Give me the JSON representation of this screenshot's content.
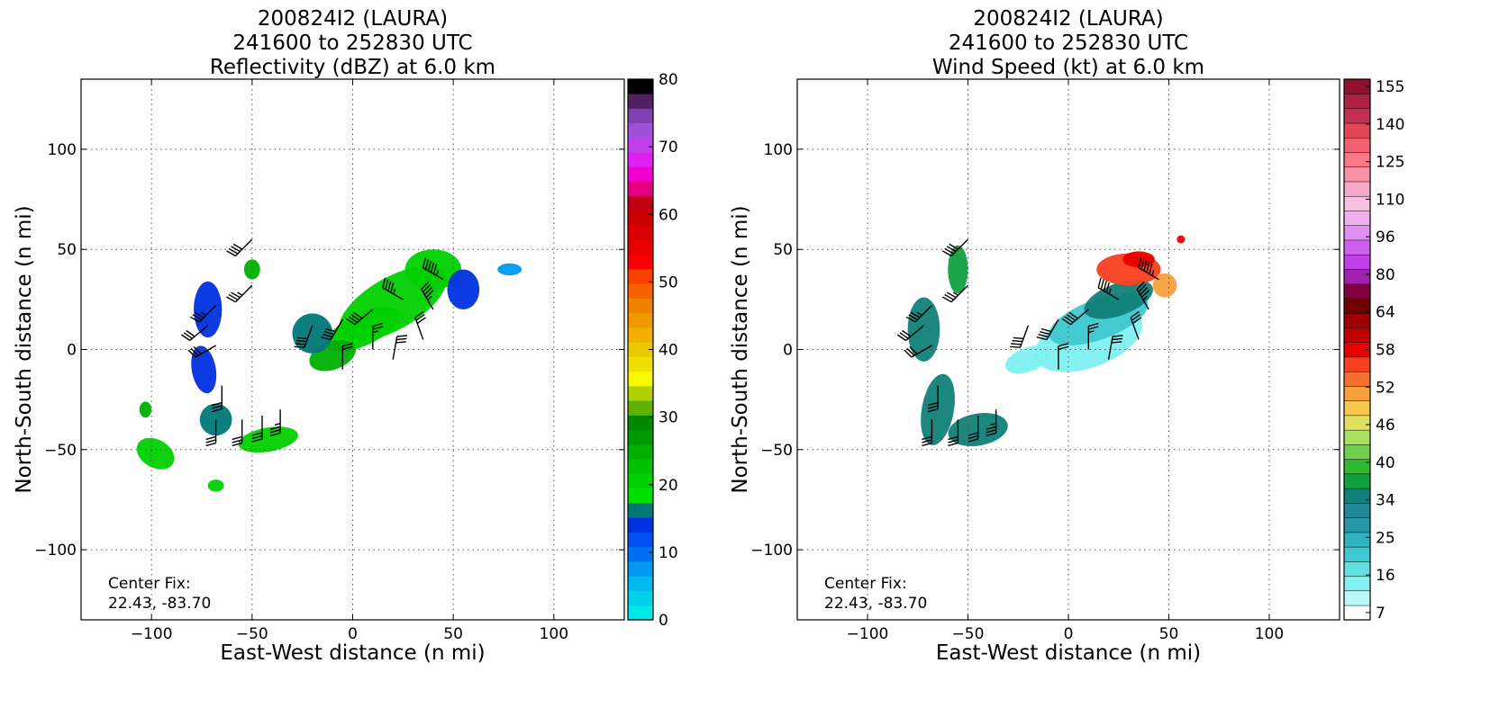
{
  "chart_data": [
    {
      "type": "heatmap",
      "title_lines": [
        "200824I2 (LAURA)",
        "241600 to 252830 UTC",
        "Reflectivity (dBZ) at 6.0 km"
      ],
      "xlabel": "East-West distance (n mi)",
      "ylabel": "North-South distance (n mi)",
      "xlim": [
        -135,
        135
      ],
      "ylim": [
        -135,
        135
      ],
      "xticks": [
        -100,
        -50,
        0,
        50,
        100
      ],
      "yticks": [
        -100,
        -50,
        0,
        50,
        100
      ],
      "grid": true,
      "annotation_lines": [
        "Center Fix:",
        "22.43, -83.70"
      ],
      "colorbar": {
        "min": 0,
        "max": 80,
        "ticks": [
          "0",
          "10",
          "20",
          "30",
          "40",
          "50",
          "60",
          "70",
          "80"
        ],
        "colors": [
          "#00e8e8",
          "#00d0e8",
          "#00b8f0",
          "#0098f0",
          "#0070f0",
          "#0050f0",
          "#0030e0",
          "#007878",
          "#00e000",
          "#00d000",
          "#00c000",
          "#00b000",
          "#009800",
          "#008800",
          "#60b000",
          "#b0d000",
          "#f8f800",
          "#f0e000",
          "#e8c800",
          "#f0b000",
          "#f09800",
          "#f08000",
          "#f86000",
          "#f84000",
          "#f80000",
          "#e80000",
          "#d80000",
          "#c80000",
          "#c00010",
          "#e00080",
          "#f000d0",
          "#e020f0",
          "#c040e8",
          "#a050d8",
          "#8040b0",
          "#502060",
          "#000000"
        ]
      },
      "field_color_scale": [
        "#00d0e8",
        "#0098f0",
        "#0050f0",
        "#0030e0",
        "#007878",
        "#00b000",
        "#00d000",
        "#00f000",
        "#60b000",
        "#b0d000",
        "#f8f800"
      ],
      "regions": [
        {
          "x": 20,
          "y": 23,
          "rx": 30,
          "ry": 13,
          "rot": 30,
          "level": 6
        },
        {
          "x": 40,
          "y": 40,
          "rx": 14,
          "ry": 10,
          "rot": 0,
          "level": 6
        },
        {
          "x": 5,
          "y": 10,
          "rx": 20,
          "ry": 8,
          "rot": 25,
          "level": 6
        },
        {
          "x": -10,
          "y": -3,
          "rx": 12,
          "ry": 7,
          "rot": 20,
          "level": 5
        },
        {
          "x": -20,
          "y": 8,
          "rx": 10,
          "ry": 10,
          "rot": 0,
          "level": 4
        },
        {
          "x": 55,
          "y": 30,
          "rx": 8,
          "ry": 10,
          "rot": 0,
          "level": 3
        },
        {
          "x": -72,
          "y": 20,
          "rx": 7,
          "ry": 14,
          "rot": 0,
          "level": 3
        },
        {
          "x": -74,
          "y": -10,
          "rx": 6,
          "ry": 12,
          "rot": 10,
          "level": 3
        },
        {
          "x": -68,
          "y": -35,
          "rx": 8,
          "ry": 8,
          "rot": 0,
          "level": 4
        },
        {
          "x": -42,
          "y": -45,
          "rx": 15,
          "ry": 6,
          "rot": 10,
          "level": 6
        },
        {
          "x": -98,
          "y": -52,
          "rx": 10,
          "ry": 7,
          "rot": -30,
          "level": 6
        },
        {
          "x": -103,
          "y": -30,
          "rx": 3,
          "ry": 4,
          "rot": 0,
          "level": 5
        },
        {
          "x": -68,
          "y": -68,
          "rx": 4,
          "ry": 3,
          "rot": 0,
          "level": 6
        },
        {
          "x": -50,
          "y": 40,
          "rx": 4,
          "ry": 5,
          "rot": 0,
          "level": 5
        },
        {
          "x": 78,
          "y": 40,
          "rx": 6,
          "ry": 3,
          "rot": 0,
          "level": 1
        }
      ],
      "barbs": [
        {
          "x": -50,
          "y": 55,
          "dir": 225,
          "spd": 40
        },
        {
          "x": -50,
          "y": 32,
          "dir": 225,
          "spd": 35
        },
        {
          "x": -68,
          "y": 22,
          "dir": 225,
          "spd": 35
        },
        {
          "x": -72,
          "y": 12,
          "dir": 230,
          "spd": 30
        },
        {
          "x": -68,
          "y": 2,
          "dir": 240,
          "spd": 30
        },
        {
          "x": -65,
          "y": -18,
          "dir": 180,
          "spd": 30
        },
        {
          "x": -68,
          "y": -35,
          "dir": 180,
          "spd": 30
        },
        {
          "x": -55,
          "y": -35,
          "dir": 180,
          "spd": 30
        },
        {
          "x": -45,
          "y": -33,
          "dir": 180,
          "spd": 30
        },
        {
          "x": -36,
          "y": -30,
          "dir": 180,
          "spd": 35
        },
        {
          "x": -20,
          "y": 12,
          "dir": 200,
          "spd": 40
        },
        {
          "x": -5,
          "y": 15,
          "dir": 210,
          "spd": 40
        },
        {
          "x": 10,
          "y": 20,
          "dir": 230,
          "spd": 40
        },
        {
          "x": 25,
          "y": 25,
          "dir": 300,
          "spd": 45
        },
        {
          "x": 40,
          "y": 20,
          "dir": 330,
          "spd": 45
        },
        {
          "x": 45,
          "y": 35,
          "dir": 300,
          "spd": 55
        },
        {
          "x": 10,
          "y": 0,
          "dir": 0,
          "spd": 25
        },
        {
          "x": 20,
          "y": -5,
          "dir": 10,
          "spd": 30
        },
        {
          "x": 35,
          "y": 5,
          "dir": 340,
          "spd": 30
        },
        {
          "x": -5,
          "y": -10,
          "dir": 0,
          "spd": 20
        }
      ]
    },
    {
      "type": "heatmap",
      "title_lines": [
        "200824I2 (LAURA)",
        "241600 to 252830 UTC",
        "Wind Speed (kt) at 6.0 km"
      ],
      "xlabel": "East-West distance (n mi)",
      "ylabel": "North-South distance (n mi)",
      "xlim": [
        -135,
        135
      ],
      "ylim": [
        -135,
        135
      ],
      "xticks": [
        -100,
        -50,
        0,
        50,
        100
      ],
      "yticks": [
        -100,
        -50,
        0,
        50,
        100
      ],
      "grid": true,
      "annotation_lines": [
        "Center Fix:",
        "22.43, -83.70"
      ],
      "colorbar": {
        "min": 7,
        "max": 155,
        "ticks": [
          "7",
          "16",
          "25",
          "34",
          "40",
          "46",
          "52",
          "58",
          "64",
          "80",
          "96",
          "110",
          "125",
          "140",
          "155"
        ],
        "colors": [
          "#ffffff",
          "#b8f8f8",
          "#80f0f0",
          "#60e0e0",
          "#40c8d0",
          "#30b0c0",
          "#2898a8",
          "#208898",
          "#108078",
          "#10a040",
          "#30b830",
          "#70d050",
          "#a8e060",
          "#e0e060",
          "#f8c850",
          "#f8a040",
          "#f87030",
          "#f84020",
          "#e80000",
          "#c00000",
          "#a00000",
          "#700000",
          "#800040",
          "#a020b0",
          "#c040e8",
          "#d060f0",
          "#e090f0",
          "#f0b0f0",
          "#f8c0e0",
          "#f8a8c8",
          "#f890a8",
          "#f87888",
          "#f06070",
          "#e04858",
          "#c03050",
          "#b02040",
          "#901030"
        ]
      },
      "field_color_scale": [
        "#d0f8f8",
        "#80f0f0",
        "#40c8d0",
        "#2898a8",
        "#108078",
        "#10a040",
        "#70d050",
        "#e0e060",
        "#f8a040",
        "#f84020",
        "#e80000"
      ],
      "regions": [
        {
          "x": 10,
          "y": 5,
          "rx": 28,
          "ry": 14,
          "rot": 20,
          "level": 1
        },
        {
          "x": 15,
          "y": 15,
          "rx": 26,
          "ry": 10,
          "rot": 20,
          "level": 2
        },
        {
          "x": 25,
          "y": 25,
          "rx": 18,
          "ry": 8,
          "rot": 20,
          "level": 4
        },
        {
          "x": 30,
          "y": 40,
          "rx": 16,
          "ry": 8,
          "rot": 0,
          "level": 9
        },
        {
          "x": 35,
          "y": 45,
          "rx": 8,
          "ry": 4,
          "rot": 0,
          "level": 10
        },
        {
          "x": 48,
          "y": 32,
          "rx": 6,
          "ry": 6,
          "rot": 0,
          "level": 8
        },
        {
          "x": -72,
          "y": 10,
          "rx": 8,
          "ry": 16,
          "rot": 0,
          "level": 4
        },
        {
          "x": -65,
          "y": -30,
          "rx": 8,
          "ry": 18,
          "rot": -10,
          "level": 4
        },
        {
          "x": -45,
          "y": -40,
          "rx": 15,
          "ry": 8,
          "rot": 10,
          "level": 4
        },
        {
          "x": -55,
          "y": 40,
          "rx": 5,
          "ry": 12,
          "rot": 0,
          "level": 5
        },
        {
          "x": 56,
          "y": 55,
          "rx": 2,
          "ry": 2,
          "rot": 0,
          "level": 10
        },
        {
          "x": -20,
          "y": -5,
          "rx": 12,
          "ry": 6,
          "rot": 20,
          "level": 1
        }
      ],
      "barbs": [
        {
          "x": -50,
          "y": 55,
          "dir": 225,
          "spd": 40
        },
        {
          "x": -50,
          "y": 32,
          "dir": 225,
          "spd": 35
        },
        {
          "x": -68,
          "y": 22,
          "dir": 225,
          "spd": 35
        },
        {
          "x": -72,
          "y": 12,
          "dir": 230,
          "spd": 30
        },
        {
          "x": -68,
          "y": 2,
          "dir": 240,
          "spd": 30
        },
        {
          "x": -65,
          "y": -18,
          "dir": 180,
          "spd": 30
        },
        {
          "x": -68,
          "y": -35,
          "dir": 180,
          "spd": 30
        },
        {
          "x": -55,
          "y": -35,
          "dir": 180,
          "spd": 30
        },
        {
          "x": -45,
          "y": -33,
          "dir": 180,
          "spd": 30
        },
        {
          "x": -36,
          "y": -30,
          "dir": 180,
          "spd": 35
        },
        {
          "x": -20,
          "y": 12,
          "dir": 200,
          "spd": 40
        },
        {
          "x": -5,
          "y": 15,
          "dir": 210,
          "spd": 40
        },
        {
          "x": 10,
          "y": 20,
          "dir": 230,
          "spd": 40
        },
        {
          "x": 25,
          "y": 25,
          "dir": 300,
          "spd": 45
        },
        {
          "x": 40,
          "y": 20,
          "dir": 330,
          "spd": 45
        },
        {
          "x": 45,
          "y": 35,
          "dir": 300,
          "spd": 55
        },
        {
          "x": 10,
          "y": 0,
          "dir": 0,
          "spd": 25
        },
        {
          "x": 20,
          "y": -5,
          "dir": 10,
          "spd": 30
        },
        {
          "x": 35,
          "y": 5,
          "dir": 340,
          "spd": 30
        },
        {
          "x": -5,
          "y": -10,
          "dir": 0,
          "spd": 20
        }
      ]
    }
  ]
}
